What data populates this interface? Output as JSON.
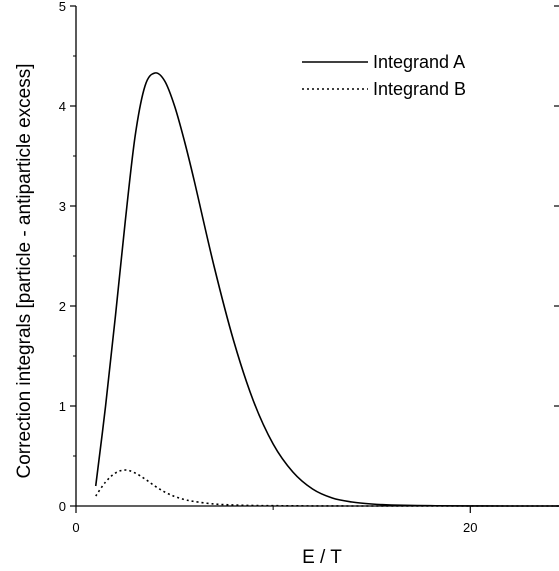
{
  "chart_data": {
    "type": "line",
    "title": "",
    "xlabel": "E / T",
    "ylabel": "Correction integrals [particle - antiparticle excess]",
    "xlim": [
      0,
      24.5
    ],
    "ylim": [
      0,
      5
    ],
    "x_ticks": [
      0,
      20
    ],
    "x_tick_labels": [
      "0",
      "20"
    ],
    "y_ticks": [
      0,
      1,
      2,
      3,
      4,
      5
    ],
    "y_tick_labels": [
      "0",
      "1",
      "2",
      "3",
      "4",
      "5"
    ],
    "grid": false,
    "legend_position": "top-right",
    "series": [
      {
        "name": "Integrand A",
        "line_style": "solid",
        "color": "#000000",
        "x": [
          1.0,
          1.5,
          2.0,
          2.5,
          3.0,
          3.5,
          4.0,
          4.5,
          5.0,
          5.5,
          6.0,
          7.0,
          8.0,
          9.0,
          10.0,
          11.0,
          12.0,
          13.0,
          14.0,
          15.0,
          16.0,
          18.0,
          20.0,
          22.0,
          24.5
        ],
        "y": [
          0.2,
          1.0,
          1.9,
          2.85,
          3.7,
          4.2,
          4.33,
          4.25,
          4.0,
          3.65,
          3.25,
          2.4,
          1.65,
          1.05,
          0.62,
          0.34,
          0.17,
          0.08,
          0.04,
          0.02,
          0.01,
          0.003,
          0.001,
          0.0,
          0.0
        ]
      },
      {
        "name": "Integrand B",
        "line_style": "dotted",
        "color": "#000000",
        "x": [
          1.0,
          1.5,
          2.0,
          2.5,
          3.0,
          3.5,
          4.0,
          4.5,
          5.0,
          5.5,
          6.0,
          7.0,
          8.0,
          9.0,
          10.0,
          12.0,
          14.0,
          16.0,
          20.0,
          24.5
        ],
        "y": [
          0.1,
          0.24,
          0.33,
          0.36,
          0.33,
          0.27,
          0.2,
          0.14,
          0.095,
          0.065,
          0.045,
          0.02,
          0.01,
          0.005,
          0.003,
          0.001,
          0.0,
          0.0,
          0.0,
          0.0
        ]
      }
    ]
  }
}
